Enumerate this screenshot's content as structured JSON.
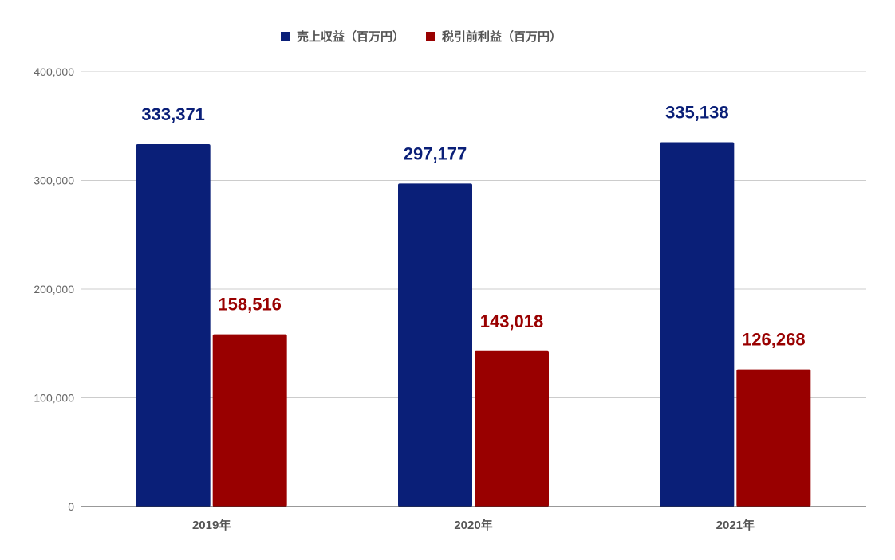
{
  "chart_data": {
    "type": "bar",
    "categories": [
      "2019年",
      "2020年",
      "2021年"
    ],
    "series": [
      {
        "name": "売上収益（百万円）",
        "color": "#0a1f78",
        "values": [
          333371,
          297177,
          335138
        ]
      },
      {
        "name": "税引前利益（百万円）",
        "color": "#990000",
        "values": [
          158516,
          143018,
          126268
        ]
      }
    ],
    "data_labels": [
      [
        "333,371",
        "297,177",
        "335,138"
      ],
      [
        "158,516",
        "143,018",
        "126,268"
      ]
    ],
    "ylim": [
      0,
      400000
    ],
    "yticks": [
      0,
      100000,
      200000,
      300000,
      400000
    ],
    "ytick_labels": [
      "0",
      "100,000",
      "200,000",
      "300,000",
      "400,000"
    ],
    "grid": true,
    "legend_position": "top-center"
  }
}
